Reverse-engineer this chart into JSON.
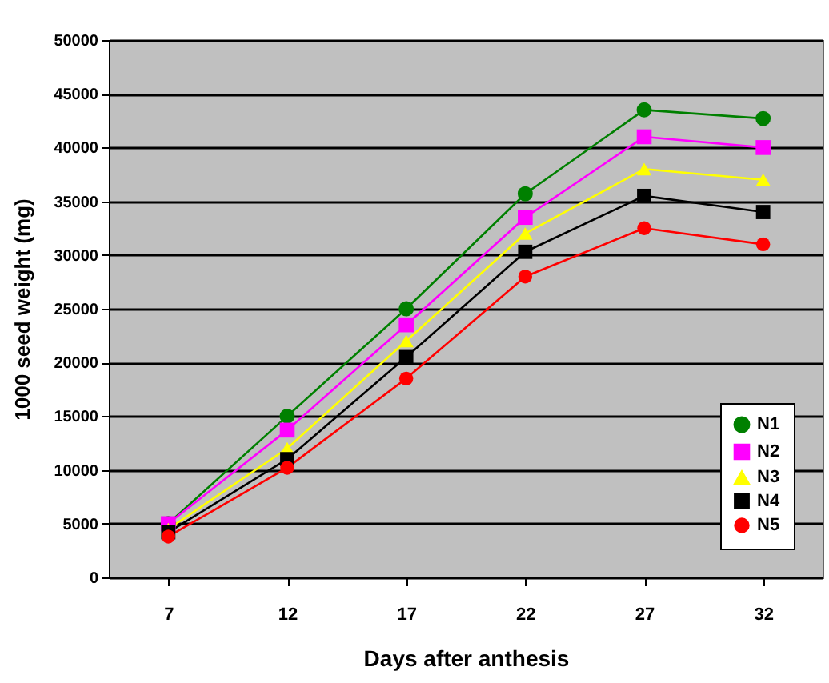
{
  "chart_data": {
    "type": "line",
    "xlabel": "Days after anthesis",
    "ylabel": "1000 seed weight (mg)",
    "categories": [
      "7",
      "12",
      "17",
      "22",
      "27",
      "32"
    ],
    "series": [
      {
        "name": "N1",
        "color": "#008000",
        "marker": "circle",
        "values": [
          5000,
          15000,
          25000,
          35700,
          43500,
          42700
        ]
      },
      {
        "name": "N2",
        "color": "#ff00ff",
        "marker": "square",
        "values": [
          5000,
          13700,
          23500,
          33500,
          41000,
          40000
        ]
      },
      {
        "name": "N3",
        "color": "#ffff00",
        "marker": "triangle",
        "values": [
          4500,
          12000,
          22000,
          32000,
          38000,
          37000
        ]
      },
      {
        "name": "N4",
        "color": "#000000",
        "marker": "square",
        "values": [
          4200,
          11000,
          20500,
          30300,
          35500,
          34000
        ]
      },
      {
        "name": "N5",
        "color": "#ff0000",
        "marker": "circle",
        "values": [
          3800,
          10200,
          18500,
          28000,
          32500,
          31000
        ]
      }
    ],
    "ylim": [
      0,
      50000
    ],
    "yticks": [
      0,
      5000,
      10000,
      15000,
      20000,
      25000,
      30000,
      35000,
      40000,
      45000,
      50000
    ],
    "grid": "y",
    "legend": "bottom right"
  }
}
